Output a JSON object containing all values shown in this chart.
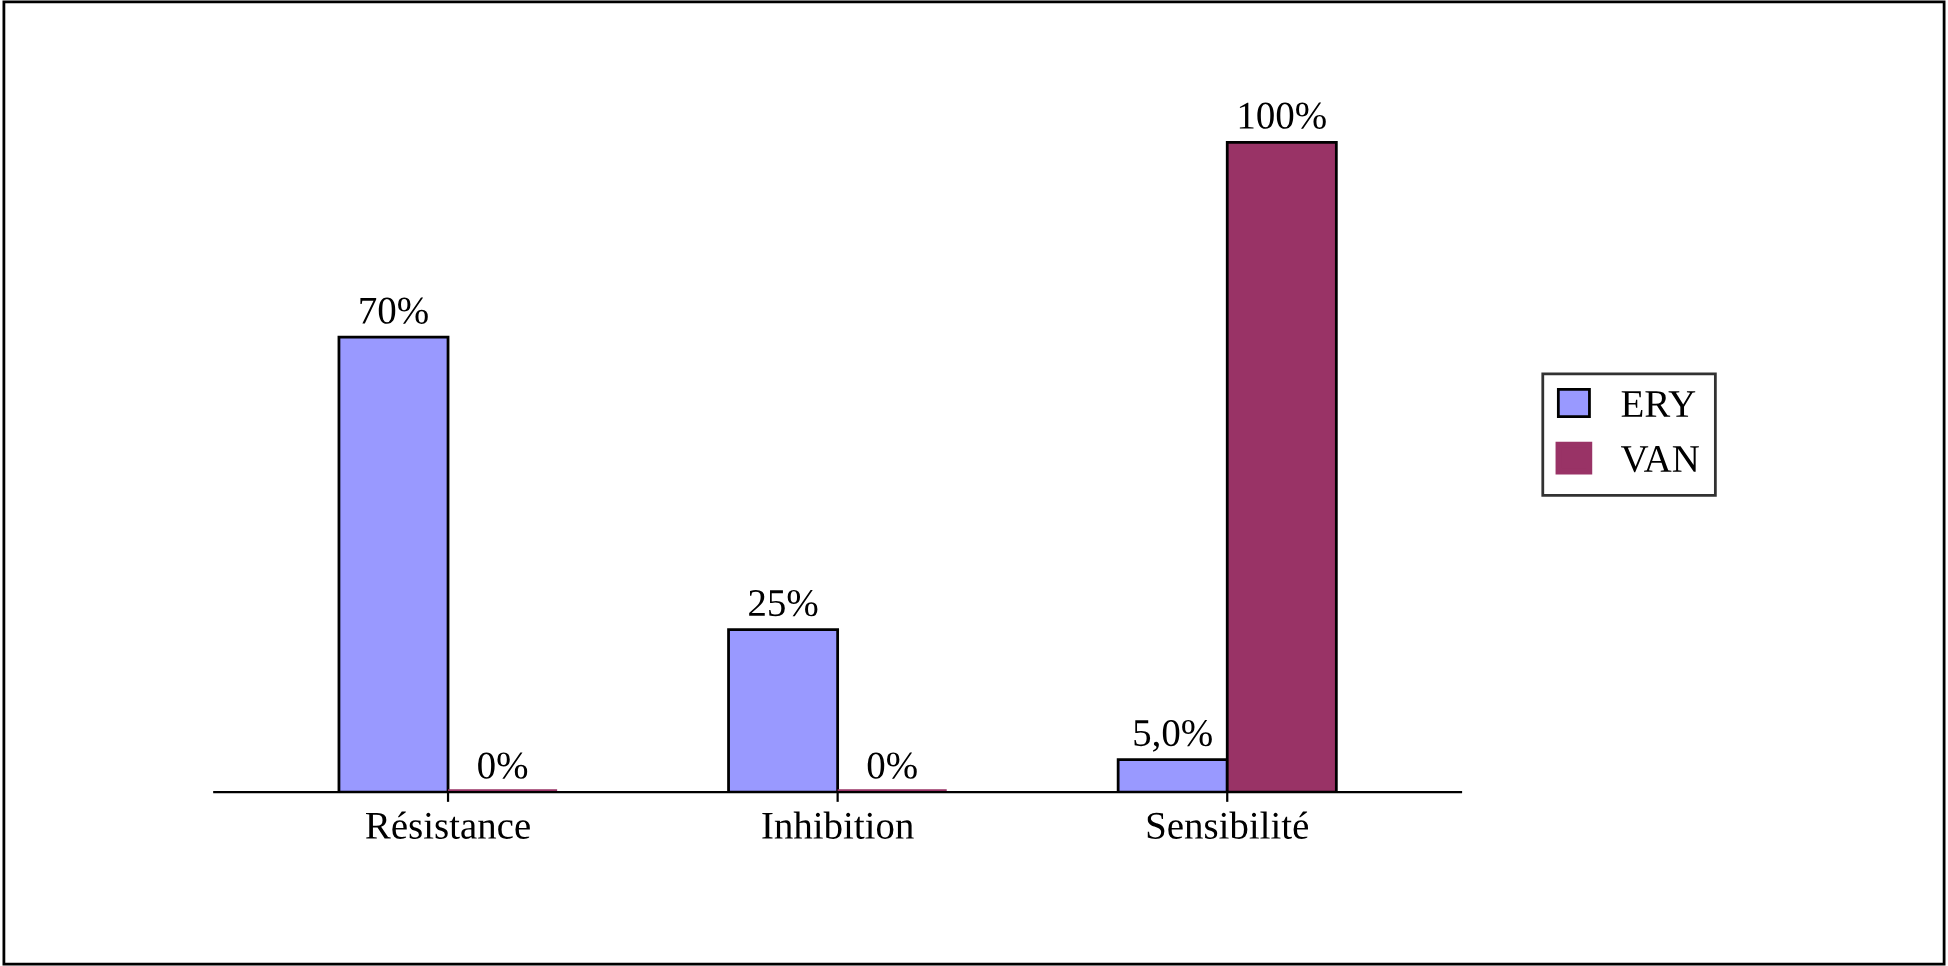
{
  "chart_data": {
    "type": "bar",
    "categories": [
      "Résistance",
      "Inhibition",
      "Sensibilité"
    ],
    "series": [
      {
        "name": "ERY",
        "color": "#9999ff",
        "values": [
          70,
          25,
          5
        ],
        "value_labels": [
          "70%",
          "25%",
          "5,0%"
        ]
      },
      {
        "name": "VAN",
        "color": "#993366",
        "values": [
          0,
          0,
          100
        ],
        "value_labels": [
          "0%",
          "0%",
          "100%"
        ]
      }
    ],
    "legend": "right",
    "grid": false
  }
}
